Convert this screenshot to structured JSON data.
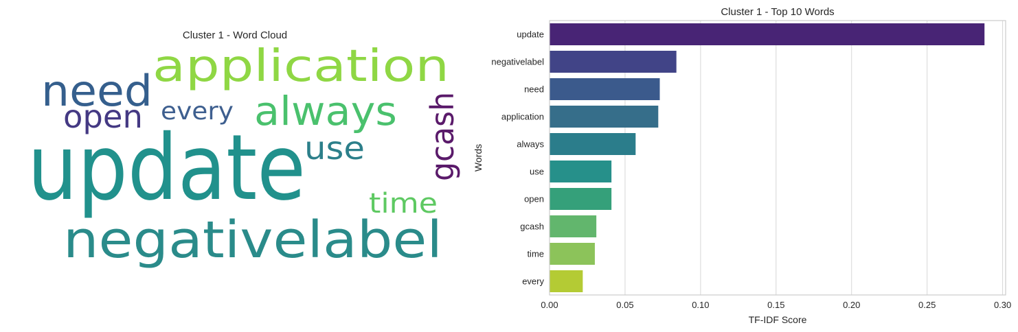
{
  "chart_data": [
    {
      "type": "wordcloud",
      "title": "Cluster 1 - Word Cloud",
      "words": [
        {
          "text": "update",
          "color": "#21918c"
        },
        {
          "text": "negativelabel",
          "color": "#2a8b8a"
        },
        {
          "text": "application",
          "color": "#8fd744"
        },
        {
          "text": "need",
          "color": "#355f8d"
        },
        {
          "text": "always",
          "color": "#4ac16d"
        },
        {
          "text": "open",
          "color": "#443983"
        },
        {
          "text": "every",
          "color": "#3e5f8f"
        },
        {
          "text": "use",
          "color": "#2c7f8a"
        },
        {
          "text": "gcash",
          "color": "#5a1a6a"
        },
        {
          "text": "time",
          "color": "#5ec962"
        }
      ]
    },
    {
      "type": "bar",
      "orientation": "horizontal",
      "title": "Cluster 1 - Top 10 Words",
      "xlabel": "TF-IDF Score",
      "ylabel": "Words",
      "xlim": [
        0,
        0.302
      ],
      "xticks": [
        "0.00",
        "0.05",
        "0.10",
        "0.15",
        "0.20",
        "0.25",
        "0.30"
      ],
      "grid": "x",
      "categories": [
        "update",
        "negativelabel",
        "need",
        "application",
        "always",
        "use",
        "open",
        "gcash",
        "time",
        "every"
      ],
      "values": [
        0.288,
        0.084,
        0.073,
        0.072,
        0.057,
        0.041,
        0.041,
        0.031,
        0.03,
        0.022
      ],
      "colors": [
        "#482475",
        "#414487",
        "#3b5a8c",
        "#366e8a",
        "#2b7d8b",
        "#26908a",
        "#35a07a",
        "#62b66d",
        "#8cc35a",
        "#b4cb34"
      ]
    }
  ]
}
